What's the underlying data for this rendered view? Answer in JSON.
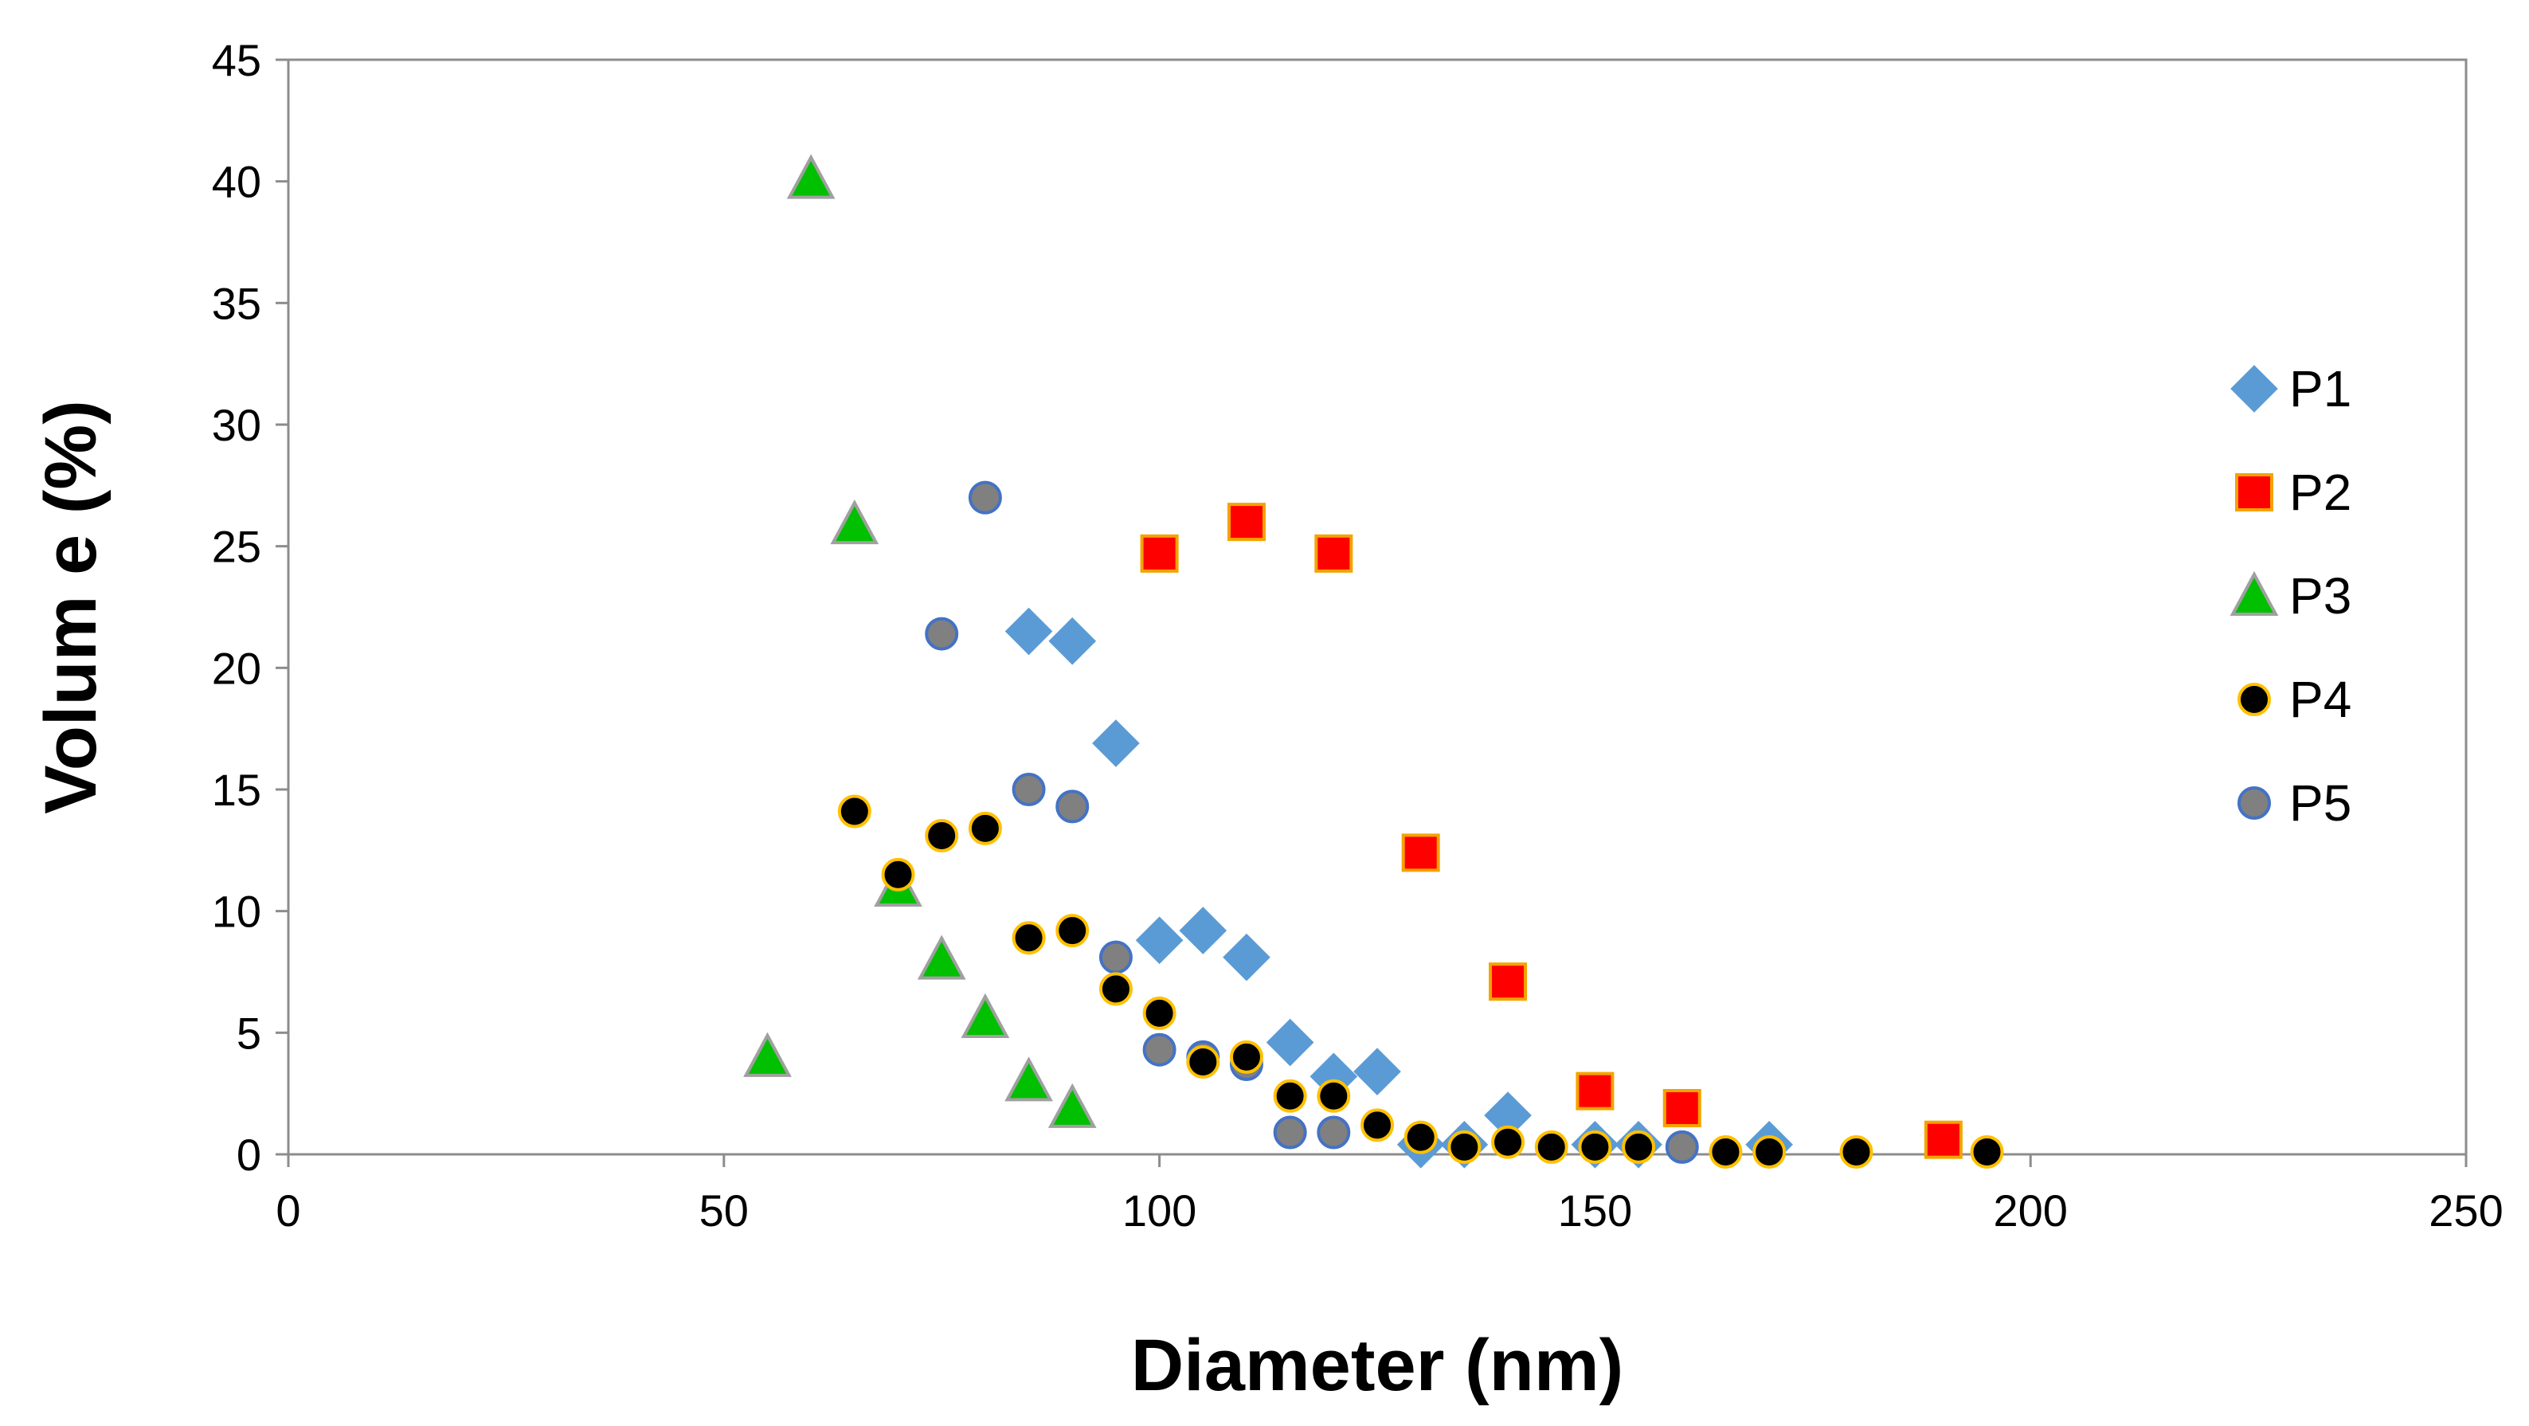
{
  "chart_data": {
    "type": "scatter",
    "title": "",
    "xlabel": "Diameter (nm)",
    "ylabel": "Volum e (%)",
    "xlim": [
      0,
      250
    ],
    "ylim": [
      0,
      45
    ],
    "xticks": [
      0,
      50,
      100,
      150,
      200,
      250
    ],
    "yticks": [
      0,
      5,
      10,
      15,
      20,
      25,
      30,
      35,
      40,
      45
    ],
    "grid": false,
    "legend_position": "right",
    "series": [
      {
        "name": "P1",
        "marker": "diamond",
        "fill": "#5B9BD5",
        "stroke": "#5B9BD5",
        "points": [
          [
            85,
            21.5
          ],
          [
            90,
            21.1
          ],
          [
            95,
            16.9
          ],
          [
            100,
            8.8
          ],
          [
            105,
            9.2
          ],
          [
            110,
            8.1
          ],
          [
            115,
            4.6
          ],
          [
            120,
            3.2
          ],
          [
            125,
            3.4
          ],
          [
            130,
            0.4
          ],
          [
            135,
            0.4
          ],
          [
            140,
            1.6
          ],
          [
            150,
            0.4
          ],
          [
            155,
            0.4
          ],
          [
            170,
            0.4
          ]
        ]
      },
      {
        "name": "P2",
        "marker": "square",
        "fill": "#FF0000",
        "stroke": "#F4A300",
        "points": [
          [
            100,
            24.7
          ],
          [
            110,
            26.0
          ],
          [
            120,
            24.7
          ],
          [
            130,
            12.4
          ],
          [
            140,
            7.1
          ],
          [
            150,
            2.6
          ],
          [
            160,
            1.9
          ],
          [
            190,
            0.6
          ]
        ]
      },
      {
        "name": "P3",
        "marker": "triangle",
        "fill": "#00C000",
        "stroke": "#A0A0A0",
        "points": [
          [
            55,
            4.0
          ],
          [
            60,
            40.1
          ],
          [
            65,
            25.9
          ],
          [
            70,
            11.0
          ],
          [
            75,
            8.0
          ],
          [
            80,
            5.6
          ],
          [
            85,
            3.0
          ],
          [
            90,
            1.9
          ]
        ]
      },
      {
        "name": "P4",
        "marker": "circle",
        "fill": "#000000",
        "stroke": "#FFC000",
        "points": [
          [
            65,
            14.1
          ],
          [
            70,
            11.5
          ],
          [
            75,
            13.1
          ],
          [
            80,
            13.4
          ],
          [
            85,
            8.9
          ],
          [
            90,
            9.2
          ],
          [
            95,
            6.8
          ],
          [
            100,
            5.8
          ],
          [
            105,
            3.8
          ],
          [
            110,
            4.0
          ],
          [
            115,
            2.4
          ],
          [
            120,
            2.4
          ],
          [
            125,
            1.2
          ],
          [
            130,
            0.7
          ],
          [
            135,
            0.3
          ],
          [
            140,
            0.5
          ],
          [
            145,
            0.3
          ],
          [
            150,
            0.3
          ],
          [
            155,
            0.3
          ],
          [
            165,
            0.1
          ],
          [
            170,
            0.1
          ],
          [
            180,
            0.1
          ],
          [
            195,
            0.1
          ]
        ]
      },
      {
        "name": "P5",
        "marker": "circle",
        "fill": "#808080",
        "stroke": "#4472C4",
        "points": [
          [
            75,
            21.4
          ],
          [
            80,
            27.0
          ],
          [
            85,
            15.0
          ],
          [
            90,
            14.3
          ],
          [
            95,
            8.1
          ],
          [
            100,
            4.3
          ],
          [
            105,
            4.0
          ],
          [
            110,
            3.7
          ],
          [
            115,
            0.9
          ],
          [
            120,
            0.9
          ],
          [
            160,
            0.3
          ]
        ]
      }
    ]
  }
}
